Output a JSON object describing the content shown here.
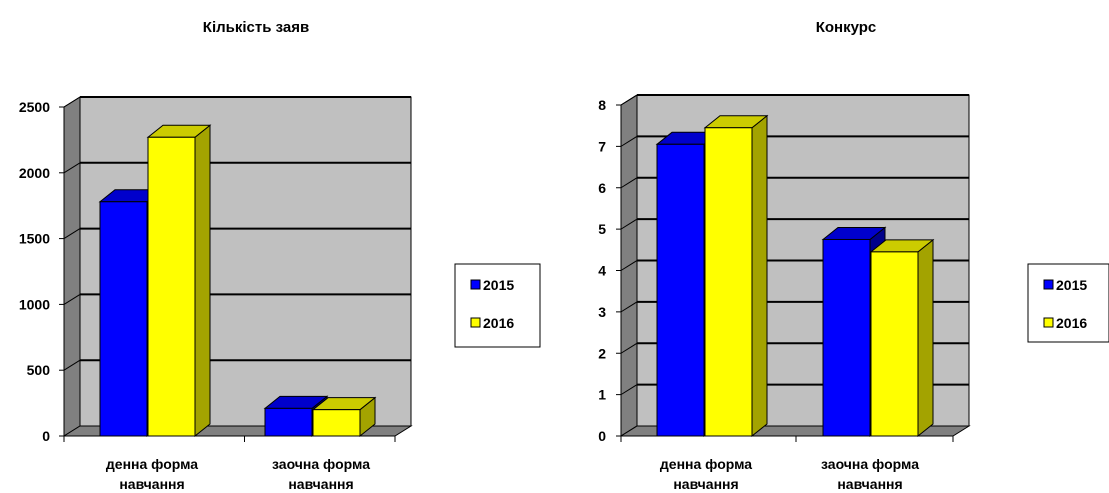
{
  "chart_data": [
    {
      "type": "bar",
      "title": "Кількість заяв",
      "categories": [
        "денна форма навчання",
        "заочна форма навчання"
      ],
      "series": [
        {
          "name": "2015",
          "values": [
            1780,
            210
          ]
        },
        {
          "name": "2016",
          "values": [
            2270,
            200
          ]
        }
      ],
      "ylim": [
        0,
        2500
      ],
      "yticks": [
        0,
        500,
        1000,
        1500,
        2000,
        2500
      ],
      "grid": true,
      "legend": "right",
      "three_d": true
    },
    {
      "type": "bar",
      "title": "Конкурс",
      "categories": [
        "денна форма навчання",
        "заочна форма навчання"
      ],
      "series": [
        {
          "name": "2015",
          "values": [
            7.05,
            4.75
          ]
        },
        {
          "name": "2016",
          "values": [
            7.45,
            4.45
          ]
        }
      ],
      "ylim": [
        0,
        8
      ],
      "yticks": [
        0,
        1,
        2,
        3,
        4,
        5,
        6,
        7,
        8
      ],
      "grid": true,
      "legend": "right",
      "three_d": true
    }
  ],
  "colors": {
    "series": [
      "#0000ff",
      "#ffff00"
    ],
    "series_side": [
      "#00008b",
      "#a3a300"
    ],
    "plot_back": "#c0c0c0",
    "plot_wall": "#808080"
  }
}
